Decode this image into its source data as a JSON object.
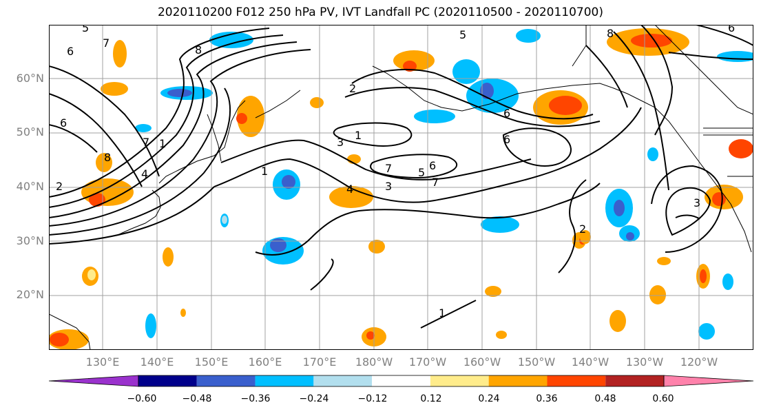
{
  "title": "2020110200 F012 250 hPa PV, IVT Landfall PC (2020110500 - 2020110700)",
  "lat_labels": [
    "60°N",
    "50°N",
    "40°N",
    "30°N",
    "20°N"
  ],
  "lon_labels": [
    "130°E",
    "140°E",
    "150°E",
    "160°E",
    "170°E",
    "180°W",
    "170°W",
    "160°W",
    "150°W",
    "140°W",
    "130°W",
    "120°W"
  ],
  "colorbar": {
    "tick_labels": [
      "−0.60",
      "−0.48",
      "−0.36",
      "−0.24",
      "−0.12",
      "0.12",
      "0.24",
      "0.36",
      "0.48",
      "0.60"
    ],
    "colors": [
      "#9a32cd",
      "#00008b",
      "#3a5fcd",
      "#00bfff",
      "#b2dfee",
      "#ffffff",
      "#ffec8b",
      "#ffa500",
      "#ff4500",
      "#b22222",
      "#ff82ab"
    ]
  },
  "contour_labels": [
    "5",
    "6",
    "7",
    "8",
    "6",
    "7",
    "1",
    "8",
    "4",
    "2",
    "3",
    "1",
    "7",
    "6",
    "5",
    "4",
    "3",
    "2",
    "6",
    "5",
    "6",
    "7",
    "8",
    "6",
    "3",
    "2",
    "1",
    "1"
  ]
}
